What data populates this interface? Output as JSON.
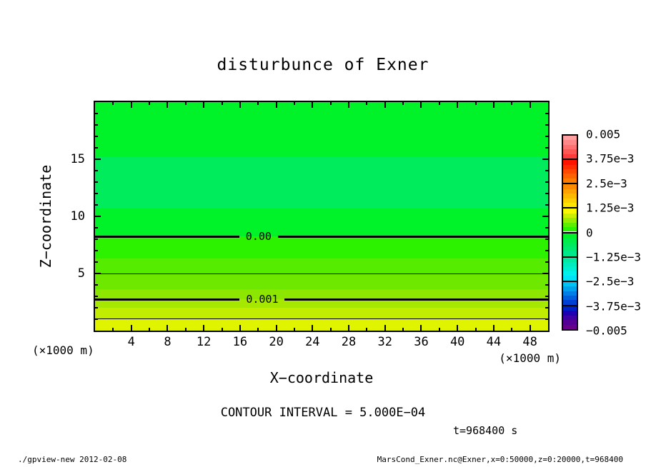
{
  "title": "disturbunce of Exner",
  "x_axis": {
    "label": "X−coordinate",
    "unit": "(×1000 m)",
    "min": 0,
    "max": 50,
    "major_step": 4,
    "minor_step": 2,
    "tick_labels": [
      4,
      8,
      12,
      16,
      20,
      24,
      28,
      32,
      36,
      40,
      44,
      48
    ]
  },
  "y_axis": {
    "label": "Z−coordinate",
    "unit": "(×1000 m)",
    "min": 0,
    "max": 20,
    "major_step": 5,
    "minor_step": 1,
    "tick_labels": [
      5,
      10,
      15
    ]
  },
  "annotations": {
    "contour_interval_text": "CONTOUR INTERVAL = 5.000E−04",
    "time_text": "t=968400 s"
  },
  "footer": {
    "left": "./gpview-new  2012-02-08",
    "right": "MarsCond_Exner.nc@Exner,x=0:50000,z=0:20000,t=968400"
  },
  "chart_data": {
    "type": "heatmap",
    "subtype": "filled-contour",
    "title": "disturbunce of Exner",
    "xlabel": "X-coordinate (x1000 m)",
    "ylabel": "Z-coordinate (x1000 m)",
    "xlim": [
      0,
      50
    ],
    "ylim": [
      0,
      20
    ],
    "contour_interval": 0.0005,
    "fill_interval": 0.00025,
    "time_seconds": 968400,
    "bands": [
      {
        "z_from": 15.2,
        "z_to": 20.0,
        "value_range": "-2.5e-4 to 0",
        "color": "#00f228"
      },
      {
        "z_from": 10.7,
        "z_to": 15.2,
        "value_range": "-5e-4 to -2.5e-4",
        "color": "#00ec5c"
      },
      {
        "z_from": 8.25,
        "z_to": 10.7,
        "value_range": "-2.5e-4 to 0",
        "color": "#00f228"
      },
      {
        "z_from": 6.3,
        "z_to": 8.25,
        "value_range": "0 to 2.5e-4",
        "color": "#2cf200"
      },
      {
        "z_from": 4.95,
        "z_to": 6.3,
        "value_range": "2.5e-4 to 5e-4",
        "color": "#55ec00"
      },
      {
        "z_from": 3.6,
        "z_to": 4.95,
        "value_range": "5e-4 to 7.5e-4",
        "color": "#6fe800"
      },
      {
        "z_from": 2.75,
        "z_to": 3.6,
        "value_range": "7.5e-4 to 1e-3",
        "color": "#8ce600"
      },
      {
        "z_from": 2.0,
        "z_to": 2.75,
        "value_range": "1e-3 to 1.25e-3",
        "color": "#a6e800"
      },
      {
        "z_from": 1.05,
        "z_to": 2.0,
        "value_range": "1.25e-3 to 1.5e-3",
        "color": "#c2ec00"
      },
      {
        "z_from": 0.0,
        "z_to": 1.05,
        "value_range": "1.5e-3 to 1.75e-3",
        "color": "#e0f400"
      }
    ],
    "contours": [
      {
        "z": 8.25,
        "value": 0.0,
        "label": "0.00",
        "thick": true,
        "label_x": 18.05
      },
      {
        "z": 5.0,
        "value": 0.0005,
        "thick": false
      },
      {
        "z": 2.75,
        "value": 0.001,
        "label": "0.001",
        "thick": true,
        "label_x": 18.45
      },
      {
        "z": 1.05,
        "value": 0.0015,
        "thick": false
      }
    ],
    "colorbar": {
      "tick_labels": [
        "0.005",
        "3.75e−3",
        "2.5e−3",
        "1.25e−3",
        "0",
        "−1.25e−3",
        "−2.5e−3",
        "−3.75e−3",
        "−0.005"
      ],
      "boxes": [
        [
          "#ff9f9f",
          "#ff8888",
          "#ff7070",
          "#ff5656",
          "#ff3c3c"
        ],
        [
          "#ff1400",
          "#ff2e00",
          "#ff4800",
          "#ff6200",
          "#ff7c00"
        ],
        [
          "#ff8c00",
          "#ffa200",
          "#ffb800",
          "#ffce00",
          "#ffe400"
        ],
        [
          "#f8f800",
          "#c8f000",
          "#98ec00",
          "#60ee00",
          "#2cf200"
        ],
        [
          "#00f228",
          "#00ee46",
          "#00ec5c",
          "#00ea74",
          "#00e88c"
        ],
        [
          "#00eaa4",
          "#00ecbc",
          "#00eed4",
          "#00f0ec",
          "#00e2f6"
        ],
        [
          "#00c2f4",
          "#00a2ec",
          "#0080e4",
          "#0060dc",
          "#0040d4"
        ],
        [
          "#0020c8",
          "#1c00b4",
          "#3c00a4",
          "#540096",
          "#68008a"
        ]
      ]
    }
  }
}
